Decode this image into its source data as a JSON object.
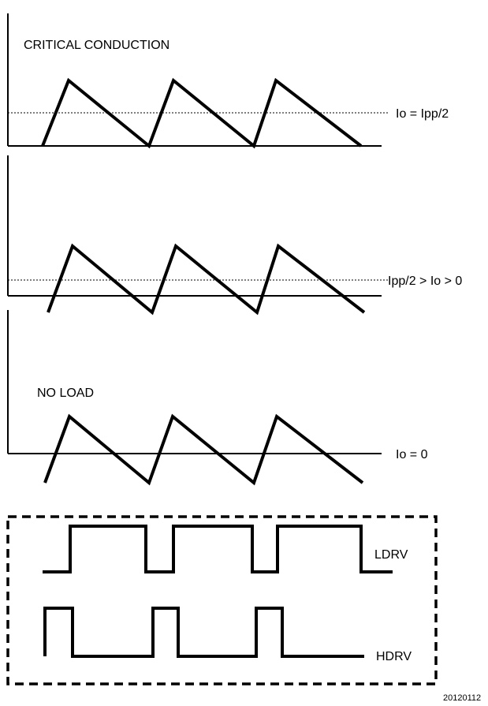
{
  "panels": {
    "critical": {
      "title": "CRITICAL CONDUCTION",
      "level_label": "Io = Ipp/2"
    },
    "partial": {
      "level_label": "Ipp/2 > Io > 0"
    },
    "noload": {
      "title": "NO LOAD",
      "level_label": "Io = 0"
    }
  },
  "drive": {
    "ldrv_label": "LDRV",
    "hdrv_label": "HDRV"
  },
  "figure_id": "20120112"
}
